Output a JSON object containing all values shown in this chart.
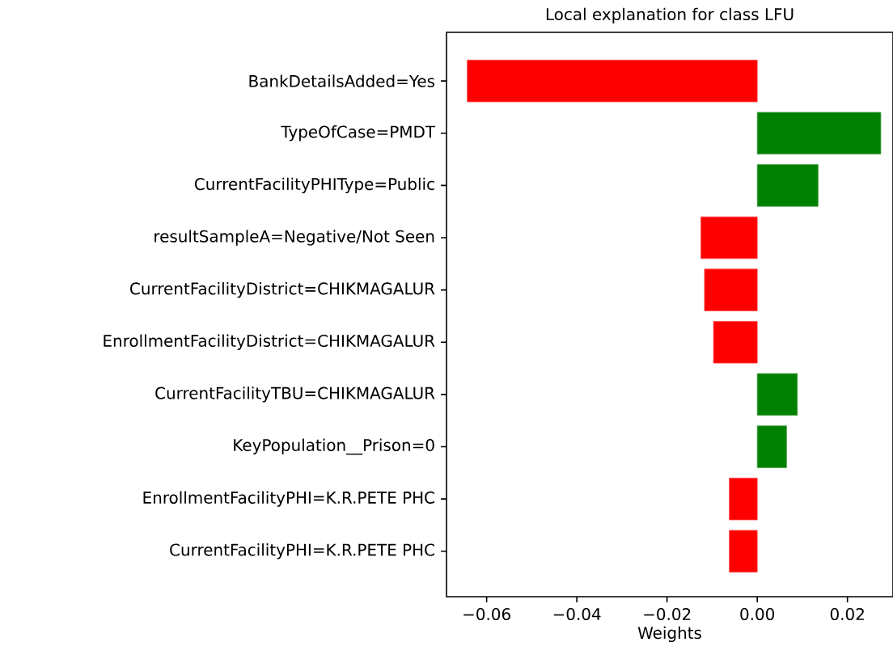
{
  "chart_data": {
    "type": "bar",
    "orientation": "horizontal",
    "title": "Local explanation for class LFU",
    "xlabel": "Weights",
    "categories": [
      "BankDetailsAdded=Yes",
      "TypeOfCase=PMDT",
      "CurrentFacilityPHIType=Public",
      "resultSampleA=Negative/Not Seen",
      "CurrentFacilityDistrict=CHIKMAGALUR",
      "EnrollmentFacilityDistrict=CHIKMAGALUR",
      "CurrentFacilityTBU=CHIKMAGALUR",
      "KeyPopulation__Prison=0",
      "EnrollmentFacilityPHI=K.R.PETE PHC",
      "CurrentFacilityPHI=K.R.PETE PHC"
    ],
    "values": [
      -0.0643,
      0.0274,
      0.0135,
      -0.0125,
      -0.0117,
      -0.0097,
      0.0089,
      0.0065,
      -0.0062,
      -0.0062
    ],
    "colors": [
      "#ff0000",
      "#008000",
      "#008000",
      "#ff0000",
      "#ff0000",
      "#ff0000",
      "#008000",
      "#008000",
      "#ff0000",
      "#ff0000"
    ],
    "xlim": [
      -0.0689,
      0.0301
    ],
    "xticks": [
      {
        "value": -0.06,
        "label": "−0.06"
      },
      {
        "value": -0.04,
        "label": "−0.04"
      },
      {
        "value": -0.02,
        "label": "−0.02"
      },
      {
        "value": 0.0,
        "label": "0.00"
      },
      {
        "value": 0.02,
        "label": "0.02"
      }
    ]
  }
}
